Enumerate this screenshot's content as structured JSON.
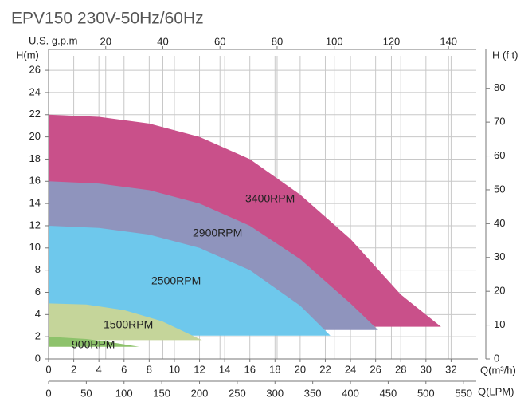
{
  "chart_data": {
    "type": "area",
    "title": "EPV150 230V-50Hz/60Hz",
    "ylabel": "H(m)",
    "y2label": "H (f t)",
    "xlabel": "Q(m³/h)",
    "x2label": "Q(LPM)",
    "x3label": "U.S. g.p.m",
    "xlim": [
      0,
      34
    ],
    "xticks": [
      0,
      2,
      4,
      6,
      8,
      10,
      12,
      14,
      16,
      18,
      20,
      22,
      24,
      26,
      28,
      30,
      32
    ],
    "ylim": [
      0,
      27.3
    ],
    "yticks": [
      0,
      2,
      4,
      6,
      8,
      10,
      12,
      14,
      16,
      18,
      20,
      22,
      24,
      26
    ],
    "y2lim": [
      0,
      89.6
    ],
    "y2ticks": [
      0,
      10,
      20,
      30,
      40,
      50,
      60,
      70,
      80
    ],
    "x2lim": [
      0,
      566.7
    ],
    "x2ticks": [
      0,
      50,
      100,
      150,
      200,
      250,
      300,
      350,
      400,
      450,
      500,
      550
    ],
    "x3lim": [
      0,
      149.7
    ],
    "x3ticks": [
      20,
      40,
      60,
      80,
      100,
      120,
      140
    ],
    "grid": true,
    "series": [
      {
        "name": "3400RPM",
        "color": "#c9508a",
        "x": [
          0,
          4,
          8,
          12,
          16,
          20,
          24,
          28,
          31.2
        ],
        "values": [
          22,
          21.8,
          21.2,
          20,
          18,
          14.8,
          10.8,
          5.8,
          2.9
        ]
      },
      {
        "name": "2900RPM",
        "color": "#8f94bd",
        "x": [
          0,
          4,
          8,
          12,
          16,
          20,
          24,
          26.2
        ],
        "values": [
          16,
          15.8,
          15.2,
          14,
          12,
          9,
          5,
          2.6
        ]
      },
      {
        "name": "2500RPM",
        "color": "#6ec8ec",
        "x": [
          0,
          4,
          8,
          12,
          16,
          20,
          22.4
        ],
        "values": [
          12,
          11.8,
          11.2,
          10,
          8,
          4.8,
          2.1
        ]
      },
      {
        "name": "1500RPM",
        "color": "#c5d59a",
        "x": [
          0,
          3,
          6,
          9,
          12.2
        ],
        "values": [
          5,
          4.9,
          4.4,
          3.4,
          1.7
        ]
      },
      {
        "name": "900RPM",
        "color": "#8dc26b",
        "x": [
          0,
          3,
          5,
          7.2
        ],
        "values": [
          2,
          1.8,
          1.5,
          1.1
        ]
      }
    ]
  }
}
